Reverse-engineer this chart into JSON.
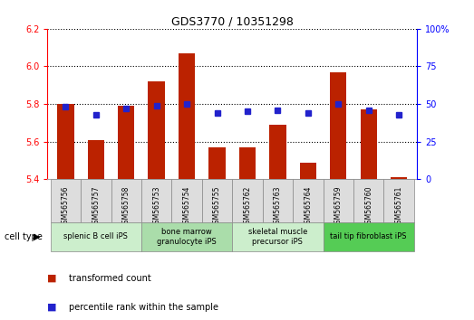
{
  "title": "GDS3770 / 10351298",
  "samples": [
    "GSM565756",
    "GSM565757",
    "GSM565758",
    "GSM565753",
    "GSM565754",
    "GSM565755",
    "GSM565762",
    "GSM565763",
    "GSM565764",
    "GSM565759",
    "GSM565760",
    "GSM565761"
  ],
  "transformed_count": [
    5.8,
    5.61,
    5.79,
    5.92,
    6.07,
    5.57,
    5.57,
    5.69,
    5.49,
    5.97,
    5.77,
    5.41
  ],
  "percentile_rank": [
    48,
    43,
    47,
    49,
    50,
    44,
    45,
    46,
    44,
    50,
    46,
    43
  ],
  "ylim_left": [
    5.4,
    6.2
  ],
  "ylim_right": [
    0,
    100
  ],
  "yticks_left": [
    5.4,
    5.6,
    5.8,
    6.0,
    6.2
  ],
  "yticks_right": [
    0,
    25,
    50,
    75,
    100
  ],
  "bar_color": "#bb2200",
  "dot_color": "#2222cc",
  "cell_types": [
    {
      "label": "splenic B cell iPS",
      "start": 0,
      "end": 3,
      "color": "#cceecc"
    },
    {
      "label": "bone marrow\ngranulocyte iPS",
      "start": 3,
      "end": 6,
      "color": "#aaddaa"
    },
    {
      "label": "skeletal muscle\nprecursor iPS",
      "start": 6,
      "end": 9,
      "color": "#cceecc"
    },
    {
      "label": "tail tip fibroblast iPS",
      "start": 9,
      "end": 12,
      "color": "#55cc55"
    }
  ],
  "legend_transformed": "transformed count",
  "legend_percentile": "percentile rank within the sample",
  "cell_type_label": "cell type",
  "bar_width": 0.55,
  "grid_color": "#000000"
}
